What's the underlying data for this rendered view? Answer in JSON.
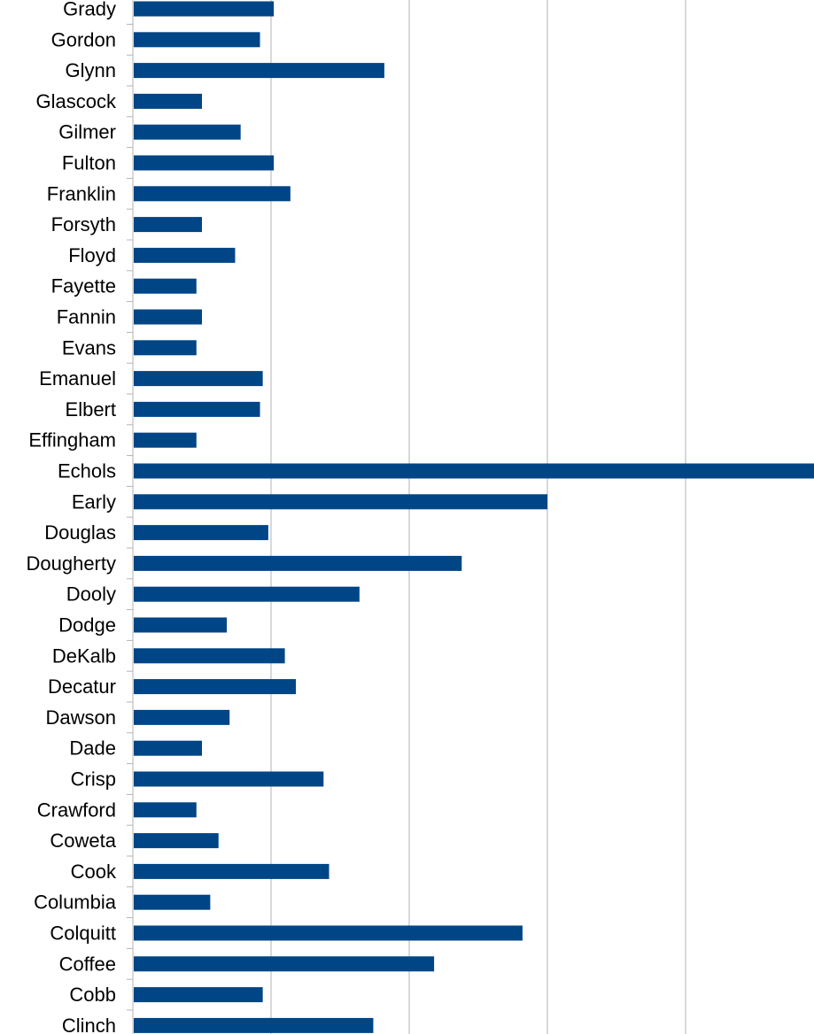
{
  "chart_data": {
    "type": "bar",
    "orientation": "horizontal",
    "title": "",
    "xlabel": "",
    "ylabel": "",
    "xlim": [
      0,
      25
    ],
    "x_gridlines": [
      5,
      10,
      15,
      20
    ],
    "grid": "vertical",
    "bar_color": "#004586",
    "categories": [
      "Grady",
      "Gordon",
      "Glynn",
      "Glascock",
      "Gilmer",
      "Fulton",
      "Franklin",
      "Forsyth",
      "Floyd",
      "Fayette",
      "Fannin",
      "Evans",
      "Emanuel",
      "Elbert",
      "Effingham",
      "Echols",
      "Early",
      "Douglas",
      "Dougherty",
      "Dooly",
      "Dodge",
      "DeKalb",
      "Decatur",
      "Dawson",
      "Dade",
      "Crisp",
      "Crawford",
      "Coweta",
      "Cook",
      "Columbia",
      "Colquitt",
      "Coffee",
      "Cobb",
      "Clinch"
    ],
    "values": [
      5.1,
      4.6,
      9.1,
      2.5,
      3.9,
      5.1,
      5.7,
      2.5,
      3.7,
      2.3,
      2.5,
      2.3,
      4.7,
      4.6,
      2.3,
      24.7,
      15.0,
      4.9,
      11.9,
      8.2,
      3.4,
      5.5,
      5.9,
      3.5,
      2.5,
      6.9,
      2.3,
      3.1,
      7.1,
      2.8,
      14.1,
      10.9,
      4.7,
      8.7
    ]
  }
}
